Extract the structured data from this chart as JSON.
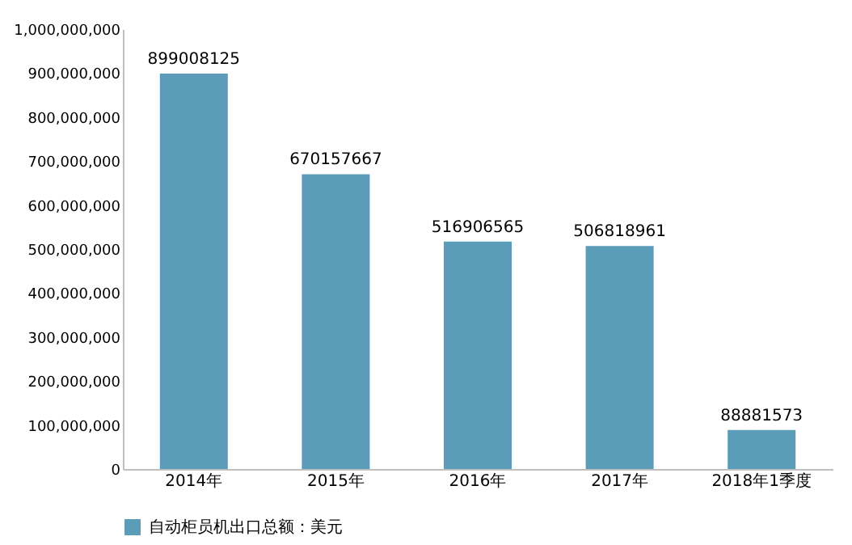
{
  "chart_data": {
    "type": "bar",
    "categories": [
      "2014年",
      "2015年",
      "2016年",
      "2017年",
      "2018年1季度"
    ],
    "series": [
      {
        "name": "自动柜员机出口总额：美元",
        "color": "#5b9cb9",
        "values": [
          899008125,
          670157667,
          516906565,
          506818961,
          88881573
        ]
      }
    ],
    "ylim": [
      0,
      1000000000
    ],
    "yticks": [
      0,
      {
        "value": 100000000,
        "label": "100,000,000"
      },
      {
        "value": 200000000,
        "label": "200,000,000"
      },
      {
        "value": 300000000,
        "label": "300,000,000"
      },
      {
        "value": 400000000,
        "label": "400,000,000"
      },
      {
        "value": 500000000,
        "label": "500,000,000"
      },
      {
        "value": 600000000,
        "label": "600,000,000"
      },
      {
        "value": 700000000,
        "label": "700,000,000"
      },
      {
        "value": 800000000,
        "label": "800,000,000"
      },
      {
        "value": 900000000,
        "label": "900,000,000"
      },
      {
        "value": 1000000000,
        "label": "1,000,000,000"
      }
    ],
    "grid": false,
    "legend": "bottom",
    "data_labels": true
  }
}
